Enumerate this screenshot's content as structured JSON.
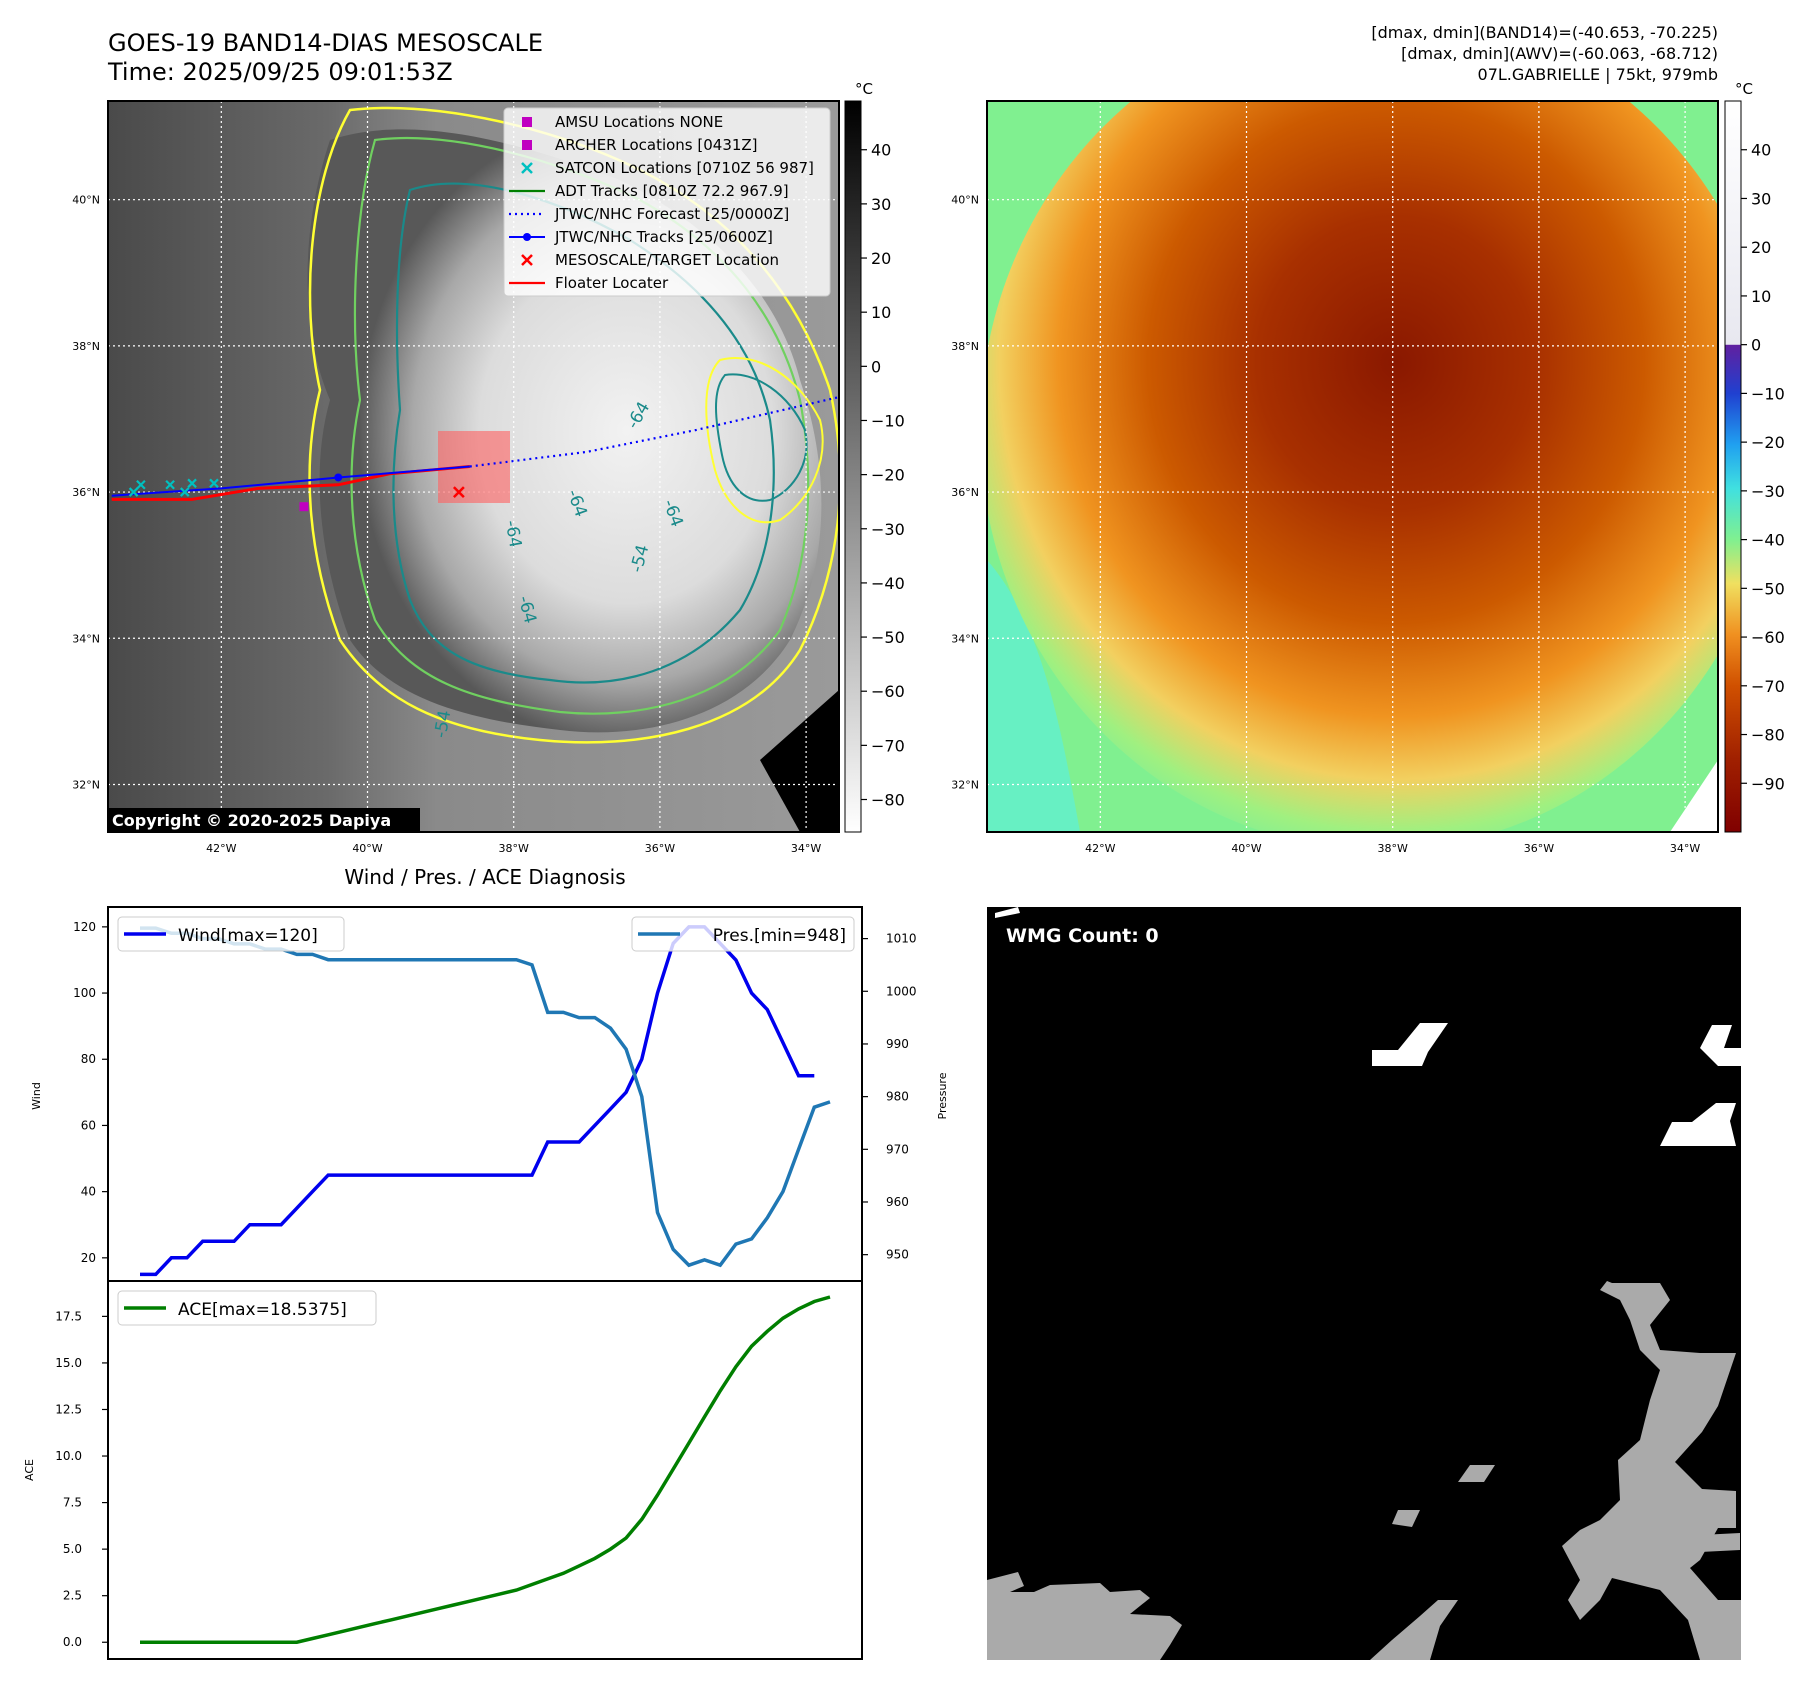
{
  "header": {
    "title": "GOES-19 BAND14-DIAS MESOSCALE",
    "time": "Time: 2025/09/25 09:01:53Z",
    "dmax_band14": "[dmax, dmin](BAND14)=(-40.653, -70.225)",
    "dmax_awv": "[dmax, dmin](AWV)=(-60.063, -68.712)",
    "storm": "07L.GABRIELLE | 75kt, 979mb"
  },
  "map_axes": {
    "lat_labels": [
      "40°N",
      "38°N",
      "36°N",
      "34°N",
      "32°N"
    ],
    "lat_values": [
      40,
      38,
      36,
      34,
      32
    ],
    "lon_labels": [
      "42°W",
      "40°W",
      "38°W",
      "36°W",
      "34°W"
    ],
    "lon_values": [
      -42,
      -40,
      -38,
      -36,
      -34
    ],
    "lat_range": [
      31.35,
      41.35
    ],
    "lon_range": [
      -43.55,
      -33.55
    ]
  },
  "ir_panel": {
    "colorbar_unit": "°C",
    "colorbar_ticks": [
      "40",
      "30",
      "20",
      "10",
      "0",
      "−10",
      "−20",
      "−30",
      "−40",
      "−50",
      "−60",
      "−70",
      "−80"
    ],
    "colorbar_tick_values": [
      40,
      30,
      20,
      10,
      0,
      -10,
      -20,
      -30,
      -40,
      -50,
      -60,
      -70,
      -80
    ],
    "colorbar_range": [
      49,
      -86
    ],
    "copyright": "Copyright © 2020-2025 Dapiya",
    "contour_labels": [
      "-64",
      "-64",
      "-64",
      "-64",
      "-64",
      "-54",
      "-54"
    ],
    "legend": [
      {
        "label": "AMSU Locations NONE",
        "marker": "square",
        "color": "#c000c0"
      },
      {
        "label": "ARCHER Locations [0431Z]",
        "marker": "square",
        "color": "#c000c0"
      },
      {
        "label": "SATCON Locations [0710Z 56 987]",
        "marker": "x",
        "color": "#00c0c0"
      },
      {
        "label": "ADT Tracks [0810Z 72.2 967.9]",
        "marker": "line",
        "color": "#007f00"
      },
      {
        "label": "JTWC/NHC Forecast [25/0000Z]",
        "marker": "dotted",
        "color": "#0000ff"
      },
      {
        "label": "JTWC/NHC Tracks [25/0600Z]",
        "marker": "line-dot",
        "color": "#0000ff"
      },
      {
        "label": "MESOSCALE/TARGET Location",
        "marker": "x",
        "color": "#ff0000"
      },
      {
        "label": "Floater Locater",
        "marker": "line",
        "color": "#ff0000"
      }
    ]
  },
  "awv_panel": {
    "colorbar_unit": "°C",
    "colorbar_ticks": [
      "40",
      "30",
      "20",
      "10",
      "0",
      "−10",
      "−20",
      "−30",
      "−40",
      "−50",
      "−60",
      "−70",
      "−80",
      "−90"
    ],
    "colorbar_tick_values": [
      40,
      30,
      20,
      10,
      0,
      -10,
      -20,
      -30,
      -40,
      -50,
      -60,
      -70,
      -80,
      -90
    ],
    "colorbar_range": [
      50,
      -100
    ]
  },
  "wmg_panel": {
    "label": "WMG Count: 0"
  },
  "chart_data": [
    {
      "type": "line",
      "title": "Wind / Pres. / ACE Diagnosis",
      "xlabel": "",
      "ylabel": "Wind",
      "ylabel_right": "Pressure",
      "x": [
        0,
        1,
        2,
        3,
        4,
        5,
        6,
        7,
        8,
        9,
        10,
        11,
        12,
        13,
        14,
        15,
        16,
        17,
        18,
        19,
        20,
        21,
        22,
        23,
        24,
        25,
        26,
        27,
        28,
        29,
        30,
        31,
        32,
        33,
        34,
        35,
        36,
        37,
        38,
        39,
        40,
        41,
        42,
        43,
        44
      ],
      "series": [
        {
          "name": "Wind[max=120]",
          "axis": "left",
          "color": "#0000ee",
          "values": [
            15,
            15,
            20,
            20,
            25,
            25,
            25,
            30,
            30,
            30,
            35,
            40,
            45,
            45,
            45,
            45,
            45,
            45,
            45,
            45,
            45,
            45,
            45,
            45,
            45,
            45,
            55,
            55,
            55,
            60,
            65,
            70,
            80,
            100,
            115,
            120,
            120,
            115,
            110,
            100,
            95,
            85,
            75,
            75,
            null
          ]
        },
        {
          "name": "Pres.[min=948]",
          "axis": "right",
          "color": "#1f77b4",
          "values": [
            1012,
            1012,
            1011,
            1011,
            1010,
            1010,
            1009,
            1009,
            1008,
            1008,
            1007,
            1007,
            1006,
            1006,
            1006,
            1006,
            1006,
            1006,
            1006,
            1006,
            1006,
            1006,
            1006,
            1006,
            1006,
            1005,
            996,
            996,
            995,
            995,
            993,
            989,
            980,
            958,
            951,
            948,
            949,
            948,
            952,
            953,
            957,
            962,
            970,
            978,
            979
          ]
        }
      ],
      "ylim": [
        13,
        126
      ],
      "ylim_right": [
        945,
        1016
      ],
      "yticks": [
        20,
        40,
        60,
        80,
        100,
        120
      ],
      "yticks_right": [
        950,
        960,
        970,
        980,
        990,
        1000,
        1010
      ]
    },
    {
      "type": "line",
      "title": "",
      "xlabel": "",
      "ylabel": "ACE",
      "x": [
        0,
        1,
        2,
        3,
        4,
        5,
        6,
        7,
        8,
        9,
        10,
        11,
        12,
        13,
        14,
        15,
        16,
        17,
        18,
        19,
        20,
        21,
        22,
        23,
        24,
        25,
        26,
        27,
        28,
        29,
        30,
        31,
        32,
        33,
        34,
        35,
        36,
        37,
        38,
        39,
        40,
        41,
        42,
        43,
        44
      ],
      "series": [
        {
          "name": "ACE[max=18.5375]",
          "color": "#007f00",
          "values": [
            0,
            0,
            0,
            0,
            0,
            0,
            0,
            0,
            0,
            0,
            0,
            0.2,
            0.4,
            0.6,
            0.8,
            1.0,
            1.2,
            1.4,
            1.6,
            1.8,
            2.0,
            2.2,
            2.4,
            2.6,
            2.8,
            3.1,
            3.4,
            3.7,
            4.1,
            4.5,
            5.0,
            5.6,
            6.6,
            7.9,
            9.3,
            10.7,
            12.1,
            13.5,
            14.8,
            15.9,
            16.7,
            17.4,
            17.9,
            18.3,
            18.54
          ]
        }
      ],
      "ylim": [
        -0.9,
        19.4
      ],
      "yticks": [
        0.0,
        2.5,
        5.0,
        7.5,
        10.0,
        12.5,
        15.0,
        17.5
      ],
      "ytick_labels": [
        "0.0",
        "2.5",
        "5.0",
        "7.5",
        "10.0",
        "12.5",
        "15.0",
        "17.5"
      ]
    }
  ]
}
